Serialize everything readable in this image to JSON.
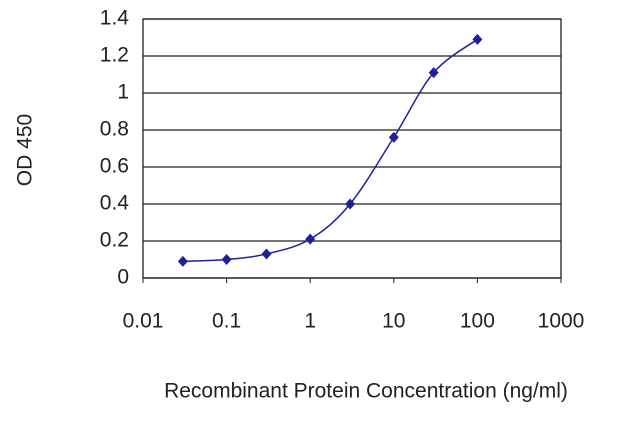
{
  "chart_data": {
    "type": "line",
    "x_label": "Recombinant Protein Concentration (ng/ml)",
    "y_label": "OD 450",
    "x": [
      0.03,
      0.1,
      0.3,
      1,
      3,
      10,
      30,
      100
    ],
    "series": [
      {
        "color": "#1c2398",
        "values": [
          0.09,
          0.1,
          0.13,
          0.21,
          0.4,
          0.76,
          1.11,
          1.29
        ]
      }
    ],
    "xlim": [
      0.01,
      1000
    ],
    "xticks": [
      0.01,
      0.1,
      1,
      10,
      100,
      1000
    ],
    "x_log": true,
    "ylim": [
      0,
      1.4
    ],
    "yticks": [
      0,
      0.2,
      0.4,
      0.6,
      0.8,
      1,
      1.2,
      1.4
    ],
    "grid": true
  }
}
